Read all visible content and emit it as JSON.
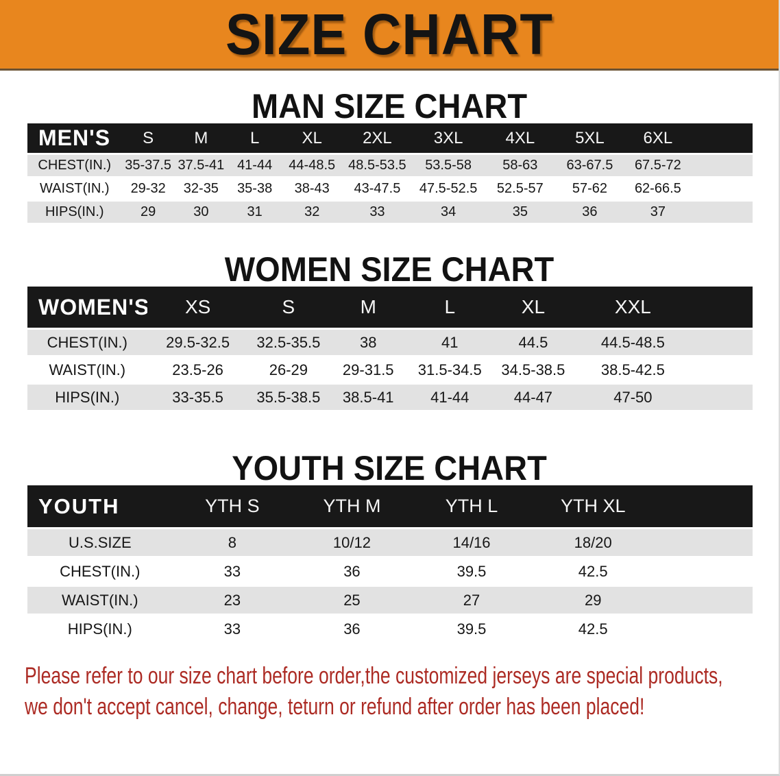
{
  "banner": {
    "title": "SIZE CHART"
  },
  "colors": {
    "banner_bg": "#E8861E",
    "band_bg": "#181818",
    "stripe": "#E2E2E2",
    "note_red": "#AC2B24"
  },
  "sections": [
    {
      "id": "men",
      "heading": "MAN SIZE CHART",
      "table": {
        "header_label": "MEN'S",
        "columns": [
          "S",
          "M",
          "L",
          "XL",
          "2XL",
          "3XL",
          "4XL",
          "5XL",
          "6XL"
        ],
        "rows": [
          {
            "label": "CHEST(IN.)",
            "values": [
              "35-37.5",
              "37.5-41",
              "41-44",
              "44-48.5",
              "48.5-53.5",
              "53.5-58",
              "58-63",
              "63-67.5",
              "67.5-72"
            ]
          },
          {
            "label": "WAIST(IN.)",
            "values": [
              "29-32",
              "32-35",
              "35-38",
              "38-43",
              "43-47.5",
              "47.5-52.5",
              "52.5-57",
              "57-62",
              "62-66.5"
            ]
          },
          {
            "label": "HIPS(IN.)",
            "values": [
              "29",
              "30",
              "31",
              "32",
              "33",
              "34",
              "35",
              "36",
              "37"
            ]
          }
        ]
      }
    },
    {
      "id": "women",
      "heading": "WOMEN SIZE CHART",
      "table": {
        "header_label": "WOMEN'S",
        "columns": [
          "XS",
          "S",
          "M",
          "L",
          "XL",
          "XXL"
        ],
        "rows": [
          {
            "label": "CHEST(IN.)",
            "values": [
              "29.5-32.5",
              "32.5-35.5",
              "38",
              "41",
              "44.5",
              "44.5-48.5"
            ]
          },
          {
            "label": "WAIST(IN.)",
            "values": [
              "23.5-26",
              "26-29",
              "29-31.5",
              "31.5-34.5",
              "34.5-38.5",
              "38.5-42.5"
            ]
          },
          {
            "label": "HIPS(IN.)",
            "values": [
              "33-35.5",
              "35.5-38.5",
              "38.5-41",
              "41-44",
              "44-47",
              "47-50"
            ]
          }
        ]
      }
    },
    {
      "id": "youth",
      "heading": "YOUTH SIZE CHART",
      "table": {
        "header_label": "YOUTH",
        "columns": [
          "YTH S",
          "YTH M",
          "YTH L",
          "YTH XL"
        ],
        "rows": [
          {
            "label": "U.S.SIZE",
            "values": [
              "8",
              "10/12",
              "14/16",
              "18/20"
            ]
          },
          {
            "label": "CHEST(IN.)",
            "values": [
              "33",
              "36",
              "39.5",
              "42.5"
            ]
          },
          {
            "label": "WAIST(IN.)",
            "values": [
              "23",
              "25",
              "27",
              "29"
            ]
          },
          {
            "label": "HIPS(IN.)",
            "values": [
              "33",
              "36",
              "39.5",
              "42.5"
            ]
          }
        ]
      }
    }
  ],
  "footer": {
    "line1": "Please refer to our size chart before order,the customized jerseys are special products,",
    "line2": "we don't accept cancel, change, teturn or refund after order has been placed!"
  }
}
